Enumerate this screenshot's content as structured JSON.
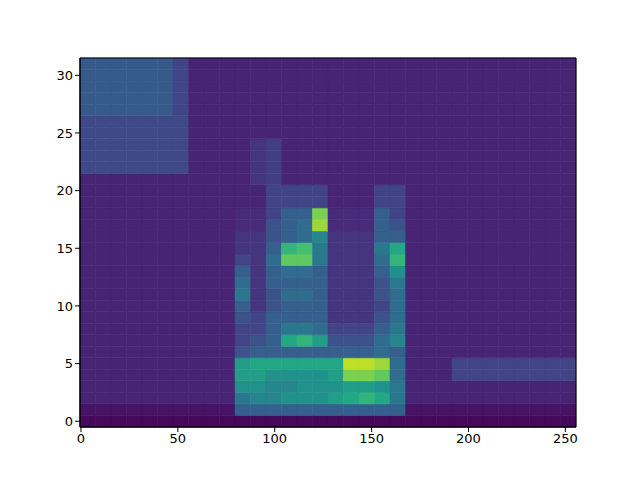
{
  "chart_data": {
    "type": "heatmap",
    "xlim": [
      -0.5,
      255.5
    ],
    "ylim": [
      -0.5,
      31.5
    ],
    "xticks": [
      0,
      50,
      100,
      150,
      200,
      250
    ],
    "yticks": [
      0,
      5,
      10,
      15,
      20,
      25,
      30
    ],
    "zlim": [
      0,
      1
    ],
    "x_edges": [
      -0.5,
      7.5,
      15.5,
      23.5,
      31.5,
      39.5,
      47.5,
      55.5,
      63.5,
      71.5,
      79.5,
      87.5,
      95.5,
      103.5,
      111.5,
      119.5,
      127.5,
      135.5,
      143.5,
      151.5,
      159.5,
      167.5,
      175.5,
      183.5,
      191.5,
      199.5,
      207.5,
      215.5,
      223.5,
      231.5,
      239.5,
      247.5,
      255.5
    ],
    "y_edges": [
      -0.5,
      0.5,
      1.5,
      2.5,
      3.5,
      4.5,
      5.5,
      6.5,
      7.5,
      8.5,
      9.5,
      10.5,
      11.5,
      12.5,
      13.5,
      14.5,
      15.5,
      16.5,
      17.5,
      18.5,
      19.5,
      20.5,
      21.5,
      22.5,
      23.5,
      24.5,
      25.5,
      26.5,
      27.5,
      28.5,
      29.5,
      30.5,
      31.5
    ],
    "cells": [
      [
        0.02,
        0.02,
        0.02,
        0.02,
        0.02,
        0.02,
        0.02,
        0.02,
        0.02,
        0.02,
        0.02,
        0.02,
        0.02,
        0.02,
        0.02,
        0.02,
        0.02,
        0.02,
        0.02,
        0.02,
        0.02,
        0.02,
        0.02,
        0.02,
        0.02,
        0.02,
        0.02,
        0.02,
        0.02,
        0.02,
        0.02,
        0.02
      ],
      [
        0.05,
        0.05,
        0.05,
        0.05,
        0.05,
        0.05,
        0.05,
        0.05,
        0.05,
        0.05,
        0.3,
        0.3,
        0.3,
        0.3,
        0.3,
        0.3,
        0.3,
        0.3,
        0.3,
        0.3,
        0.3,
        0.05,
        0.05,
        0.05,
        0.05,
        0.05,
        0.05,
        0.05,
        0.05,
        0.05,
        0.05,
        0.05
      ],
      [
        0.1,
        0.1,
        0.1,
        0.1,
        0.1,
        0.1,
        0.1,
        0.1,
        0.1,
        0.1,
        0.4,
        0.45,
        0.45,
        0.5,
        0.5,
        0.5,
        0.55,
        0.6,
        0.65,
        0.6,
        0.4,
        0.1,
        0.1,
        0.1,
        0.1,
        0.1,
        0.1,
        0.1,
        0.1,
        0.1,
        0.1,
        0.1
      ],
      [
        0.1,
        0.1,
        0.1,
        0.1,
        0.1,
        0.1,
        0.1,
        0.1,
        0.1,
        0.1,
        0.5,
        0.5,
        0.45,
        0.45,
        0.5,
        0.5,
        0.5,
        0.55,
        0.55,
        0.5,
        0.4,
        0.1,
        0.1,
        0.1,
        0.1,
        0.1,
        0.1,
        0.1,
        0.1,
        0.1,
        0.1,
        0.1
      ],
      [
        0.1,
        0.1,
        0.1,
        0.1,
        0.1,
        0.1,
        0.1,
        0.1,
        0.1,
        0.1,
        0.55,
        0.55,
        0.5,
        0.5,
        0.5,
        0.5,
        0.55,
        0.8,
        0.8,
        0.75,
        0.35,
        0.1,
        0.1,
        0.1,
        0.2,
        0.2,
        0.2,
        0.2,
        0.2,
        0.2,
        0.2,
        0.2
      ],
      [
        0.1,
        0.1,
        0.1,
        0.1,
        0.1,
        0.1,
        0.1,
        0.1,
        0.1,
        0.1,
        0.55,
        0.6,
        0.6,
        0.6,
        0.6,
        0.6,
        0.6,
        0.9,
        0.9,
        0.85,
        0.35,
        0.1,
        0.1,
        0.1,
        0.2,
        0.2,
        0.2,
        0.2,
        0.2,
        0.2,
        0.2,
        0.2
      ],
      [
        0.1,
        0.1,
        0.1,
        0.1,
        0.1,
        0.1,
        0.1,
        0.1,
        0.1,
        0.1,
        0.25,
        0.3,
        0.3,
        0.3,
        0.3,
        0.3,
        0.3,
        0.3,
        0.3,
        0.35,
        0.3,
        0.1,
        0.1,
        0.1,
        0.1,
        0.1,
        0.1,
        0.1,
        0.1,
        0.1,
        0.1,
        0.1
      ],
      [
        0.1,
        0.1,
        0.1,
        0.1,
        0.1,
        0.1,
        0.1,
        0.1,
        0.1,
        0.1,
        0.2,
        0.25,
        0.3,
        0.6,
        0.65,
        0.55,
        0.25,
        0.25,
        0.25,
        0.35,
        0.45,
        0.1,
        0.1,
        0.1,
        0.1,
        0.1,
        0.1,
        0.1,
        0.1,
        0.1,
        0.1,
        0.1
      ],
      [
        0.1,
        0.1,
        0.1,
        0.1,
        0.1,
        0.1,
        0.1,
        0.1,
        0.1,
        0.1,
        0.2,
        0.2,
        0.3,
        0.4,
        0.4,
        0.35,
        0.2,
        0.2,
        0.2,
        0.3,
        0.4,
        0.1,
        0.1,
        0.1,
        0.1,
        0.1,
        0.1,
        0.1,
        0.1,
        0.1,
        0.1,
        0.1
      ],
      [
        0.1,
        0.1,
        0.1,
        0.1,
        0.1,
        0.1,
        0.1,
        0.1,
        0.1,
        0.1,
        0.25,
        0.2,
        0.3,
        0.3,
        0.3,
        0.3,
        0.15,
        0.15,
        0.15,
        0.25,
        0.35,
        0.1,
        0.1,
        0.1,
        0.1,
        0.1,
        0.1,
        0.1,
        0.1,
        0.1,
        0.1,
        0.1
      ],
      [
        0.1,
        0.1,
        0.1,
        0.1,
        0.1,
        0.1,
        0.1,
        0.1,
        0.1,
        0.1,
        0.3,
        0.15,
        0.25,
        0.3,
        0.3,
        0.3,
        0.15,
        0.15,
        0.15,
        0.2,
        0.35,
        0.1,
        0.1,
        0.1,
        0.1,
        0.1,
        0.1,
        0.1,
        0.1,
        0.1,
        0.1,
        0.1
      ],
      [
        0.1,
        0.1,
        0.1,
        0.1,
        0.1,
        0.1,
        0.1,
        0.1,
        0.1,
        0.1,
        0.4,
        0.15,
        0.25,
        0.35,
        0.35,
        0.3,
        0.15,
        0.15,
        0.15,
        0.25,
        0.35,
        0.1,
        0.1,
        0.1,
        0.1,
        0.1,
        0.1,
        0.1,
        0.1,
        0.1,
        0.1,
        0.1
      ],
      [
        0.1,
        0.1,
        0.1,
        0.1,
        0.1,
        0.1,
        0.1,
        0.1,
        0.1,
        0.1,
        0.35,
        0.15,
        0.3,
        0.3,
        0.3,
        0.3,
        0.15,
        0.15,
        0.15,
        0.25,
        0.4,
        0.1,
        0.1,
        0.1,
        0.1,
        0.1,
        0.1,
        0.1,
        0.1,
        0.1,
        0.1,
        0.1
      ],
      [
        0.1,
        0.1,
        0.1,
        0.1,
        0.1,
        0.1,
        0.1,
        0.1,
        0.1,
        0.1,
        0.3,
        0.15,
        0.3,
        0.35,
        0.35,
        0.3,
        0.15,
        0.15,
        0.15,
        0.3,
        0.5,
        0.1,
        0.1,
        0.1,
        0.1,
        0.1,
        0.1,
        0.1,
        0.1,
        0.1,
        0.1,
        0.1
      ],
      [
        0.1,
        0.1,
        0.1,
        0.1,
        0.1,
        0.1,
        0.1,
        0.1,
        0.1,
        0.1,
        0.2,
        0.15,
        0.35,
        0.75,
        0.75,
        0.4,
        0.15,
        0.15,
        0.15,
        0.35,
        0.65,
        0.1,
        0.1,
        0.1,
        0.1,
        0.1,
        0.1,
        0.1,
        0.1,
        0.1,
        0.1,
        0.1
      ],
      [
        0.1,
        0.1,
        0.1,
        0.1,
        0.1,
        0.1,
        0.1,
        0.1,
        0.1,
        0.1,
        0.15,
        0.15,
        0.3,
        0.65,
        0.7,
        0.4,
        0.15,
        0.15,
        0.15,
        0.4,
        0.6,
        0.1,
        0.1,
        0.1,
        0.1,
        0.1,
        0.1,
        0.1,
        0.1,
        0.1,
        0.1,
        0.1
      ],
      [
        0.1,
        0.1,
        0.1,
        0.1,
        0.1,
        0.1,
        0.1,
        0.1,
        0.1,
        0.1,
        0.15,
        0.15,
        0.25,
        0.3,
        0.35,
        0.45,
        0.15,
        0.15,
        0.15,
        0.3,
        0.3,
        0.1,
        0.1,
        0.1,
        0.1,
        0.1,
        0.1,
        0.1,
        0.1,
        0.1,
        0.1,
        0.1
      ],
      [
        0.1,
        0.1,
        0.1,
        0.1,
        0.1,
        0.1,
        0.1,
        0.1,
        0.1,
        0.1,
        0.12,
        0.12,
        0.25,
        0.3,
        0.35,
        0.85,
        0.12,
        0.12,
        0.12,
        0.3,
        0.25,
        0.1,
        0.1,
        0.1,
        0.1,
        0.1,
        0.1,
        0.1,
        0.1,
        0.1,
        0.1,
        0.1
      ],
      [
        0.1,
        0.1,
        0.1,
        0.1,
        0.1,
        0.1,
        0.1,
        0.1,
        0.1,
        0.1,
        0.12,
        0.12,
        0.2,
        0.3,
        0.3,
        0.8,
        0.12,
        0.12,
        0.12,
        0.3,
        0.2,
        0.1,
        0.1,
        0.1,
        0.1,
        0.1,
        0.1,
        0.1,
        0.1,
        0.1,
        0.1,
        0.1
      ],
      [
        0.1,
        0.1,
        0.1,
        0.1,
        0.1,
        0.1,
        0.1,
        0.1,
        0.1,
        0.1,
        0.1,
        0.1,
        0.2,
        0.2,
        0.2,
        0.2,
        0.1,
        0.1,
        0.1,
        0.2,
        0.2,
        0.1,
        0.1,
        0.1,
        0.1,
        0.1,
        0.1,
        0.1,
        0.1,
        0.1,
        0.1,
        0.1
      ],
      [
        0.1,
        0.1,
        0.1,
        0.1,
        0.1,
        0.1,
        0.1,
        0.1,
        0.1,
        0.1,
        0.1,
        0.1,
        0.2,
        0.2,
        0.2,
        0.2,
        0.1,
        0.1,
        0.1,
        0.2,
        0.2,
        0.1,
        0.1,
        0.1,
        0.1,
        0.1,
        0.1,
        0.1,
        0.1,
        0.1,
        0.1,
        0.1
      ],
      [
        0.1,
        0.1,
        0.1,
        0.1,
        0.1,
        0.1,
        0.1,
        0.1,
        0.1,
        0.1,
        0.1,
        0.15,
        0.18,
        0.1,
        0.1,
        0.1,
        0.1,
        0.1,
        0.1,
        0.1,
        0.1,
        0.1,
        0.1,
        0.1,
        0.1,
        0.1,
        0.1,
        0.1,
        0.1,
        0.1,
        0.1,
        0.1
      ],
      [
        0.22,
        0.22,
        0.22,
        0.22,
        0.22,
        0.22,
        0.22,
        0.1,
        0.1,
        0.1,
        0.1,
        0.15,
        0.18,
        0.1,
        0.1,
        0.1,
        0.1,
        0.1,
        0.1,
        0.1,
        0.1,
        0.1,
        0.1,
        0.1,
        0.1,
        0.1,
        0.1,
        0.1,
        0.1,
        0.1,
        0.1,
        0.1
      ],
      [
        0.22,
        0.22,
        0.22,
        0.22,
        0.22,
        0.22,
        0.22,
        0.1,
        0.1,
        0.1,
        0.1,
        0.15,
        0.18,
        0.1,
        0.1,
        0.1,
        0.1,
        0.1,
        0.1,
        0.1,
        0.1,
        0.1,
        0.1,
        0.1,
        0.1,
        0.1,
        0.1,
        0.1,
        0.1,
        0.1,
        0.1,
        0.1
      ],
      [
        0.22,
        0.22,
        0.22,
        0.22,
        0.22,
        0.22,
        0.22,
        0.1,
        0.1,
        0.1,
        0.1,
        0.15,
        0.18,
        0.1,
        0.1,
        0.1,
        0.1,
        0.1,
        0.1,
        0.1,
        0.1,
        0.1,
        0.1,
        0.1,
        0.1,
        0.1,
        0.1,
        0.1,
        0.1,
        0.1,
        0.1,
        0.1
      ],
      [
        0.22,
        0.22,
        0.22,
        0.22,
        0.22,
        0.22,
        0.22,
        0.1,
        0.1,
        0.1,
        0.1,
        0.1,
        0.1,
        0.1,
        0.1,
        0.1,
        0.1,
        0.1,
        0.1,
        0.1,
        0.1,
        0.1,
        0.1,
        0.1,
        0.1,
        0.1,
        0.1,
        0.1,
        0.1,
        0.1,
        0.1,
        0.1
      ],
      [
        0.22,
        0.22,
        0.22,
        0.22,
        0.22,
        0.22,
        0.22,
        0.1,
        0.1,
        0.1,
        0.1,
        0.1,
        0.1,
        0.1,
        0.1,
        0.1,
        0.1,
        0.1,
        0.1,
        0.1,
        0.1,
        0.1,
        0.1,
        0.1,
        0.1,
        0.1,
        0.1,
        0.1,
        0.1,
        0.1,
        0.1,
        0.1
      ],
      [
        0.28,
        0.28,
        0.28,
        0.28,
        0.28,
        0.28,
        0.2,
        0.1,
        0.1,
        0.1,
        0.1,
        0.1,
        0.1,
        0.1,
        0.1,
        0.1,
        0.1,
        0.1,
        0.1,
        0.1,
        0.1,
        0.1,
        0.1,
        0.1,
        0.1,
        0.1,
        0.1,
        0.1,
        0.1,
        0.1,
        0.1,
        0.1
      ],
      [
        0.28,
        0.28,
        0.28,
        0.28,
        0.28,
        0.28,
        0.2,
        0.1,
        0.1,
        0.1,
        0.1,
        0.1,
        0.1,
        0.1,
        0.1,
        0.1,
        0.1,
        0.1,
        0.1,
        0.1,
        0.1,
        0.1,
        0.1,
        0.1,
        0.1,
        0.1,
        0.1,
        0.1,
        0.1,
        0.1,
        0.1,
        0.1
      ],
      [
        0.28,
        0.28,
        0.28,
        0.28,
        0.28,
        0.28,
        0.2,
        0.1,
        0.1,
        0.1,
        0.1,
        0.1,
        0.1,
        0.1,
        0.1,
        0.1,
        0.1,
        0.1,
        0.1,
        0.1,
        0.1,
        0.1,
        0.1,
        0.1,
        0.1,
        0.1,
        0.1,
        0.1,
        0.1,
        0.1,
        0.1,
        0.1
      ],
      [
        0.28,
        0.28,
        0.28,
        0.28,
        0.28,
        0.28,
        0.2,
        0.1,
        0.1,
        0.1,
        0.1,
        0.1,
        0.1,
        0.1,
        0.1,
        0.1,
        0.1,
        0.1,
        0.1,
        0.1,
        0.1,
        0.1,
        0.1,
        0.1,
        0.1,
        0.1,
        0.1,
        0.1,
        0.1,
        0.1,
        0.1,
        0.1
      ],
      [
        0.28,
        0.28,
        0.28,
        0.28,
        0.28,
        0.28,
        0.2,
        0.1,
        0.1,
        0.1,
        0.1,
        0.1,
        0.1,
        0.1,
        0.1,
        0.1,
        0.1,
        0.1,
        0.1,
        0.1,
        0.1,
        0.1,
        0.1,
        0.1,
        0.1,
        0.1,
        0.1,
        0.1,
        0.1,
        0.1,
        0.1,
        0.1
      ]
    ]
  }
}
